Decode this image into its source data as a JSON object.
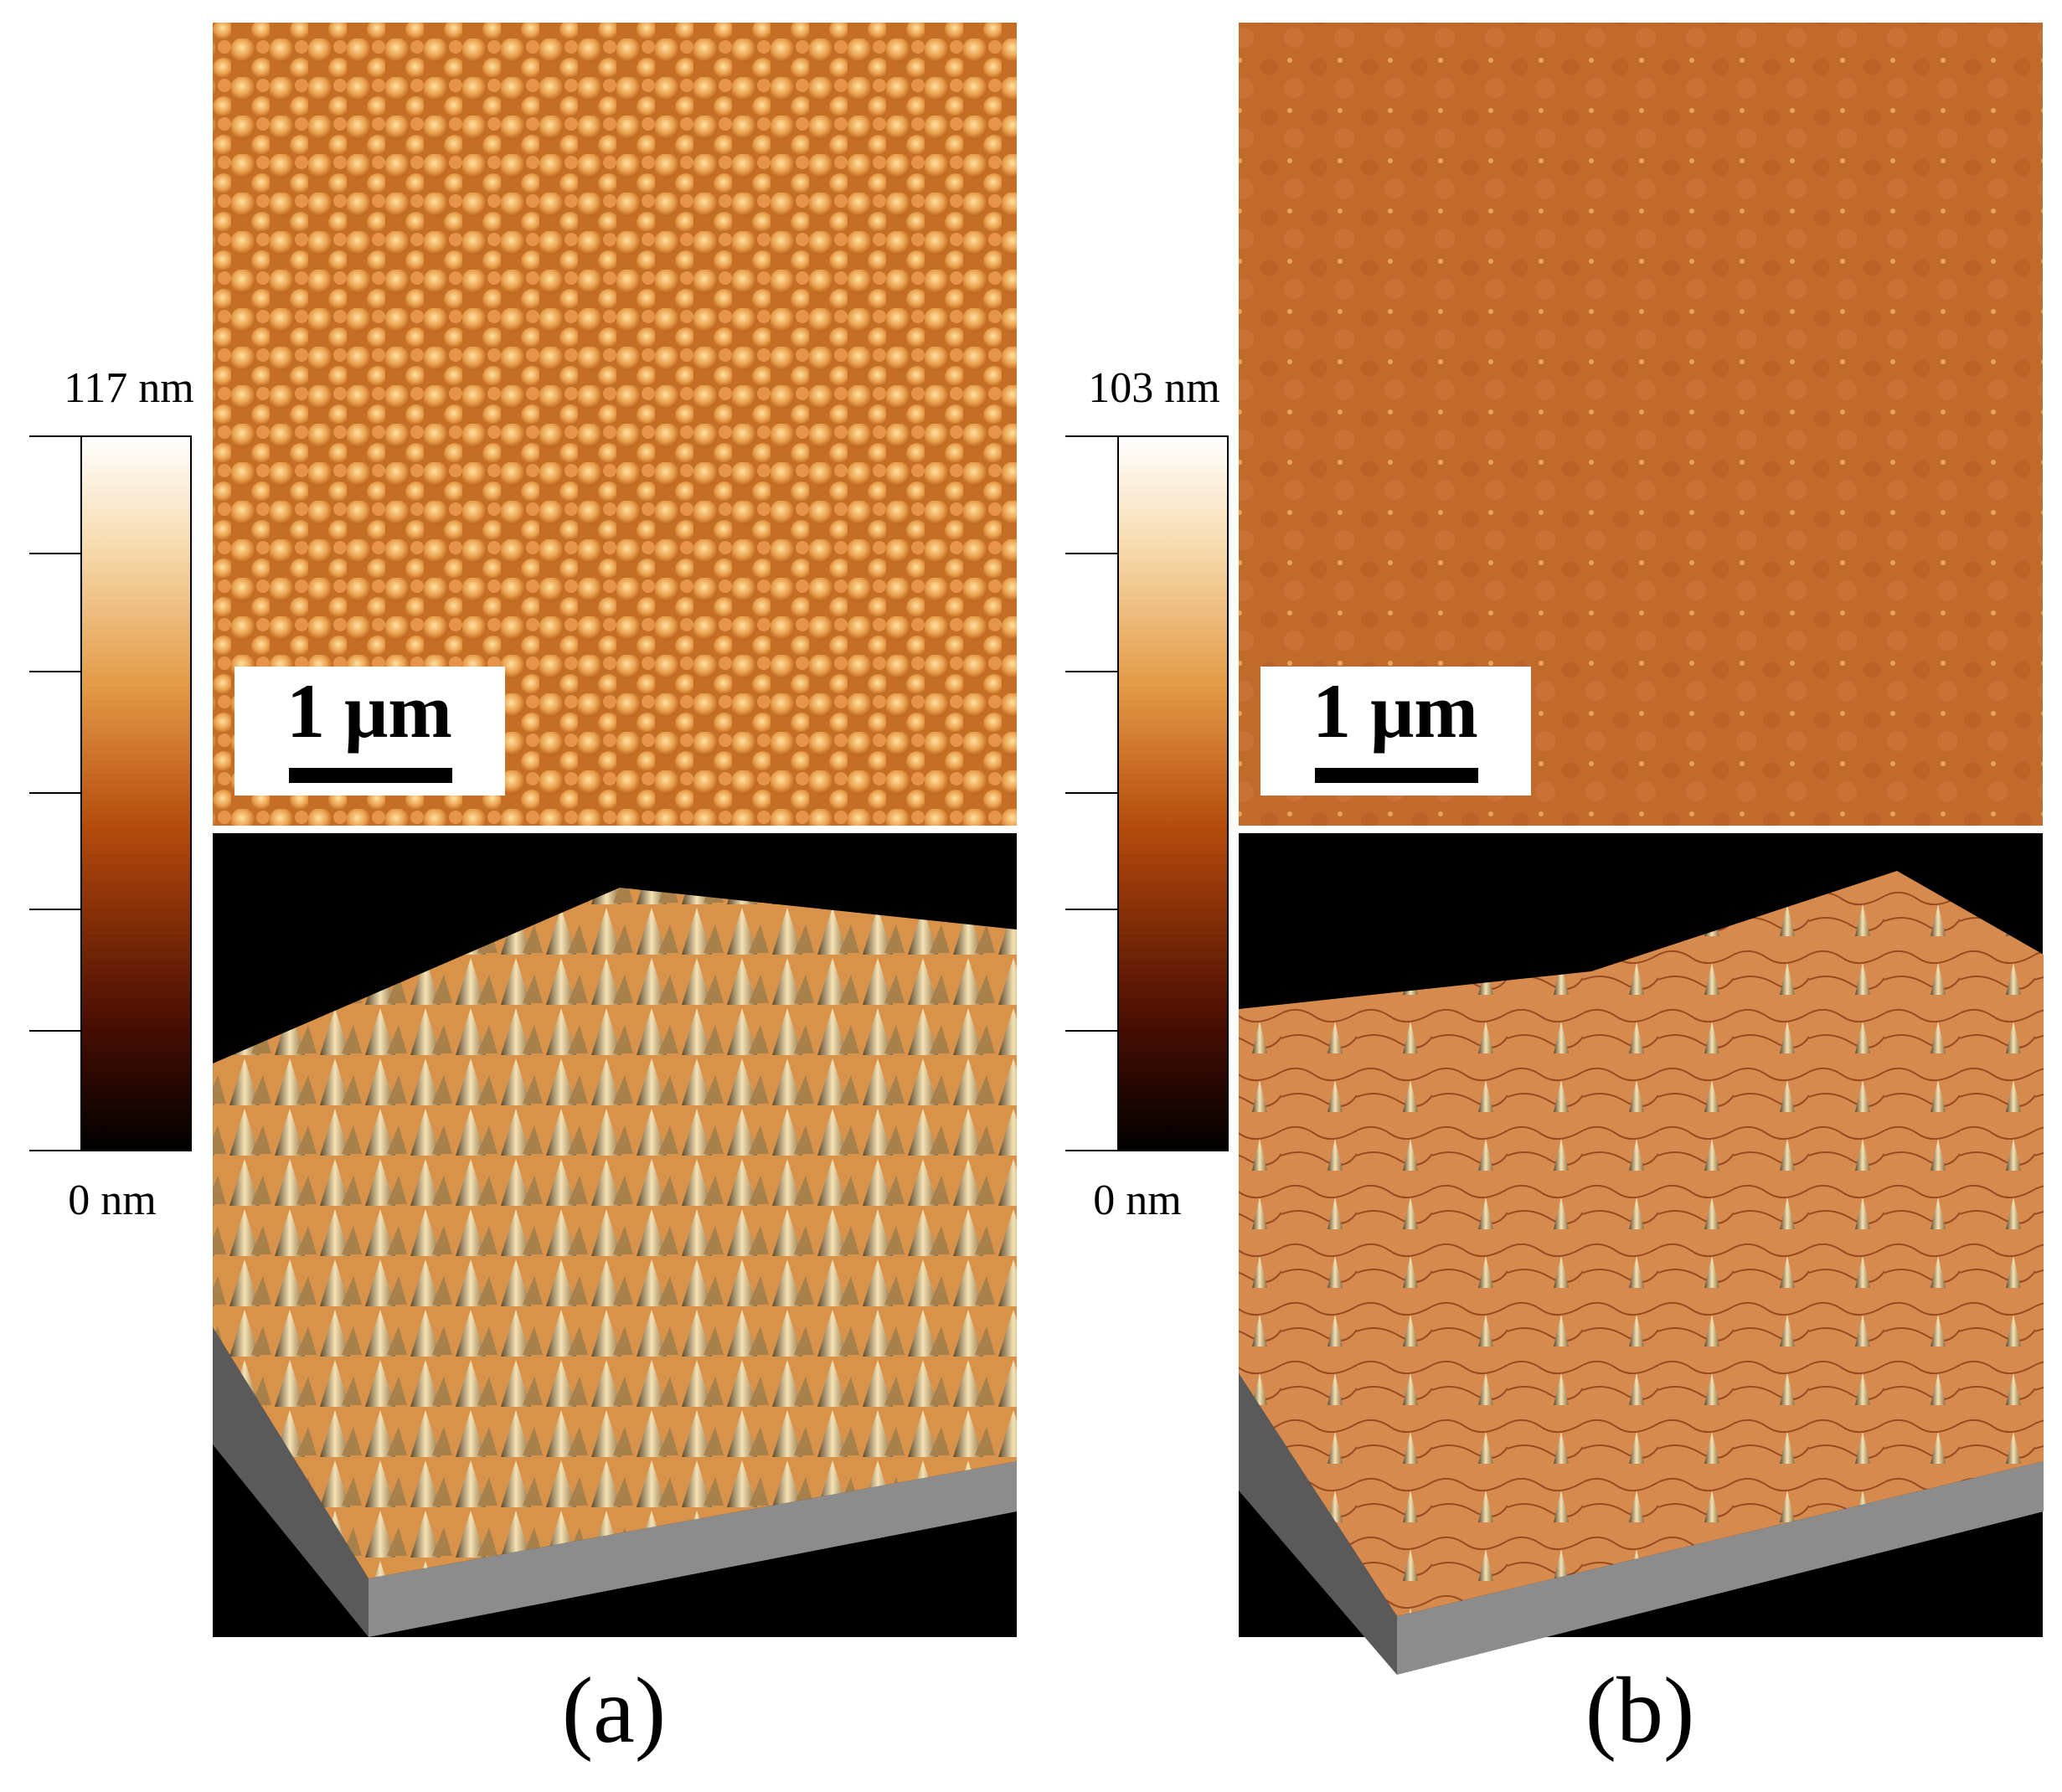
{
  "panels": [
    {
      "caption": "(a)",
      "colorbar_max": "117 nm",
      "colorbar_min": "0 nm",
      "scale_bar": "1 μm"
    },
    {
      "caption": "(b)",
      "colorbar_max": "103 nm",
      "colorbar_min": "0 nm",
      "scale_bar": "1 μm"
    }
  ]
}
